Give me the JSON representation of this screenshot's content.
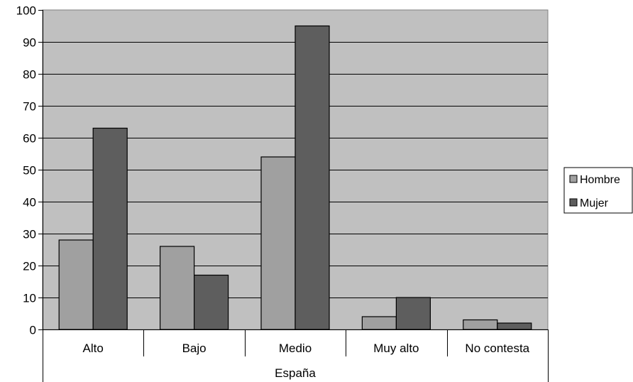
{
  "chart_data": {
    "type": "bar",
    "title": "",
    "xlabel": "",
    "ylabel": "",
    "group_label": "España",
    "categories": [
      "Alto",
      "Bajo",
      "Medio",
      "Muy alto",
      "No contesta"
    ],
    "series": [
      {
        "name": "Hombre",
        "values": [
          28,
          26,
          54,
          4,
          3
        ],
        "color": "#a0a0a0"
      },
      {
        "name": "Mujer",
        "values": [
          63,
          17,
          95,
          10,
          2
        ],
        "color": "#5e5e5e"
      }
    ],
    "ylim": [
      0,
      100
    ],
    "yticks": [
      0,
      10,
      20,
      30,
      40,
      50,
      60,
      70,
      80,
      90,
      100
    ],
    "grid": true,
    "legend_position": "right",
    "plot_background": "#c0c0c0"
  }
}
